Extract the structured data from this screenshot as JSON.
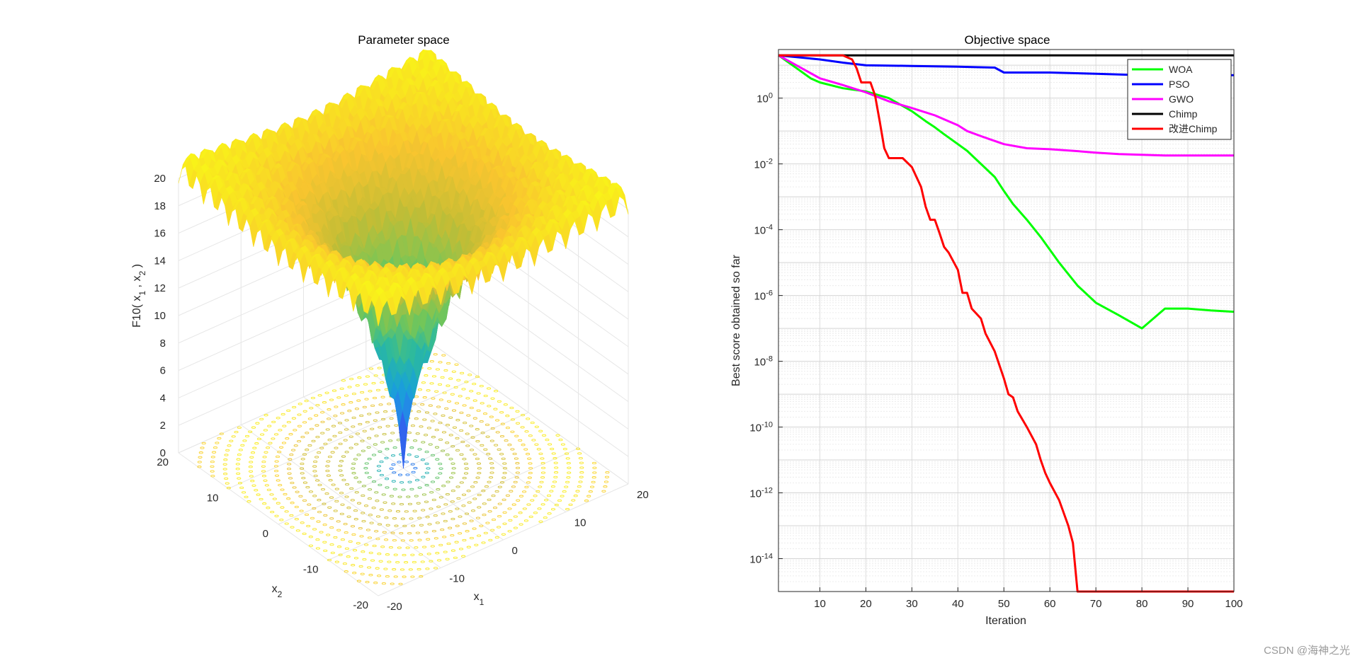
{
  "watermark": "CSDN @海神之光",
  "chart_data": [
    {
      "type": "surface3d",
      "title": "Parameter space",
      "function_label": "F10",
      "zlabel_prefix": "F10( x",
      "zlabel_mid": " , x",
      "zlabel_suffix": " )",
      "xlabel": "x",
      "xlabel_sub": "1",
      "ylabel": "x",
      "ylabel_sub": "2",
      "xlim": [
        -20,
        20
      ],
      "ylim": [
        -20,
        20
      ],
      "zlim": [
        0,
        20
      ],
      "xticks": [
        -20,
        -10,
        0,
        10,
        20
      ],
      "yticks": [
        -20,
        -10,
        0,
        10,
        20
      ],
      "zticks": [
        0,
        2,
        4,
        6,
        8,
        10,
        12,
        14,
        16,
        18,
        20
      ],
      "colormap": [
        "#3e26a8",
        "#2f6ef7",
        "#19a2d8",
        "#2ab9a0",
        "#74c658",
        "#c3bd35",
        "#f9c52f",
        "#f9fb15"
      ]
    },
    {
      "type": "line",
      "title": "Objective space",
      "xlabel": "Iteration",
      "ylabel": "Best score obtained so far",
      "yscale": "log",
      "xlim": [
        1,
        100
      ],
      "ylim": [
        1e-15,
        30
      ],
      "xticks": [
        10,
        20,
        30,
        40,
        50,
        60,
        70,
        80,
        90,
        100
      ],
      "yticks": [
        {
          "value": 1,
          "base": "10",
          "exp": "0"
        },
        {
          "value": 0.01,
          "base": "10",
          "exp": "-2"
        },
        {
          "value": 0.0001,
          "base": "10",
          "exp": "-4"
        },
        {
          "value": 1e-06,
          "base": "10",
          "exp": "-6"
        },
        {
          "value": 1e-08,
          "base": "10",
          "exp": "-8"
        },
        {
          "value": 1e-10,
          "base": "10",
          "exp": "-10"
        },
        {
          "value": 1e-12,
          "base": "10",
          "exp": "-12"
        },
        {
          "value": 1e-14,
          "base": "10",
          "exp": "-14"
        }
      ],
      "grid": true,
      "legend_position": "top-right",
      "series": [
        {
          "name": "WOA",
          "color": "#00ff00",
          "x": [
            1,
            5,
            8,
            10,
            15,
            20,
            25,
            30,
            33,
            35,
            37,
            40,
            42,
            45,
            48,
            50,
            52,
            55,
            58,
            62,
            66,
            70,
            75,
            80,
            85,
            90,
            95,
            100
          ],
          "y": [
            20,
            8,
            4,
            3,
            2,
            1.6,
            1,
            0.4,
            0.2,
            0.13,
            0.08,
            0.04,
            0.025,
            0.01,
            0.004,
            0.0015,
            0.0006,
            0.0002,
            6e-05,
            1e-05,
            2e-06,
            6e-07,
            2.5e-07,
            1e-07,
            4e-07,
            4e-07,
            3.5e-07,
            3.2e-07
          ]
        },
        {
          "name": "PSO",
          "color": "#0000ff",
          "x": [
            1,
            10,
            15,
            20,
            30,
            40,
            48,
            50,
            60,
            70,
            80,
            90,
            100
          ],
          "y": [
            20,
            15,
            12,
            10,
            9.5,
            9,
            8.5,
            6,
            6,
            5.5,
            5,
            5,
            5
          ]
        },
        {
          "name": "GWO",
          "color": "#ff00ff",
          "x": [
            1,
            10,
            15,
            20,
            25,
            30,
            35,
            40,
            42,
            45,
            48,
            50,
            55,
            60,
            65,
            70,
            75,
            80,
            85,
            90,
            100
          ],
          "y": [
            20,
            4,
            2.5,
            1.5,
            0.8,
            0.5,
            0.3,
            0.15,
            0.1,
            0.07,
            0.05,
            0.04,
            0.03,
            0.028,
            0.025,
            0.022,
            0.02,
            0.019,
            0.018,
            0.018,
            0.018
          ]
        },
        {
          "name": "Chimp",
          "color": "#000000",
          "x": [
            1,
            100
          ],
          "y": [
            20,
            20
          ]
        },
        {
          "name": "改进Chimp",
          "color": "#ff0000",
          "x": [
            1,
            15,
            17,
            18,
            19,
            20,
            21,
            22,
            23,
            24,
            25,
            26,
            28,
            30,
            32,
            33,
            34,
            35,
            36,
            37,
            38,
            40,
            41,
            42,
            43,
            45,
            46,
            48,
            50,
            51,
            52,
            53,
            55,
            57,
            58,
            59,
            60,
            62,
            64,
            65,
            66,
            100
          ],
          "y": [
            20,
            20,
            15,
            8,
            3,
            3,
            3,
            1.2,
            0.2,
            0.03,
            0.015,
            0.015,
            0.015,
            0.008,
            0.002,
            0.0005,
            0.0002,
            0.0002,
            8e-05,
            3e-05,
            2e-05,
            6e-06,
            1.2e-06,
            1.2e-06,
            4e-07,
            2e-07,
            7e-08,
            2e-08,
            3e-09,
            1e-09,
            8e-10,
            3e-10,
            1e-10,
            3e-11,
            1e-11,
            4e-12,
            2e-12,
            6e-13,
            1e-13,
            3e-14,
            1e-15,
            1e-15
          ]
        }
      ]
    }
  ]
}
